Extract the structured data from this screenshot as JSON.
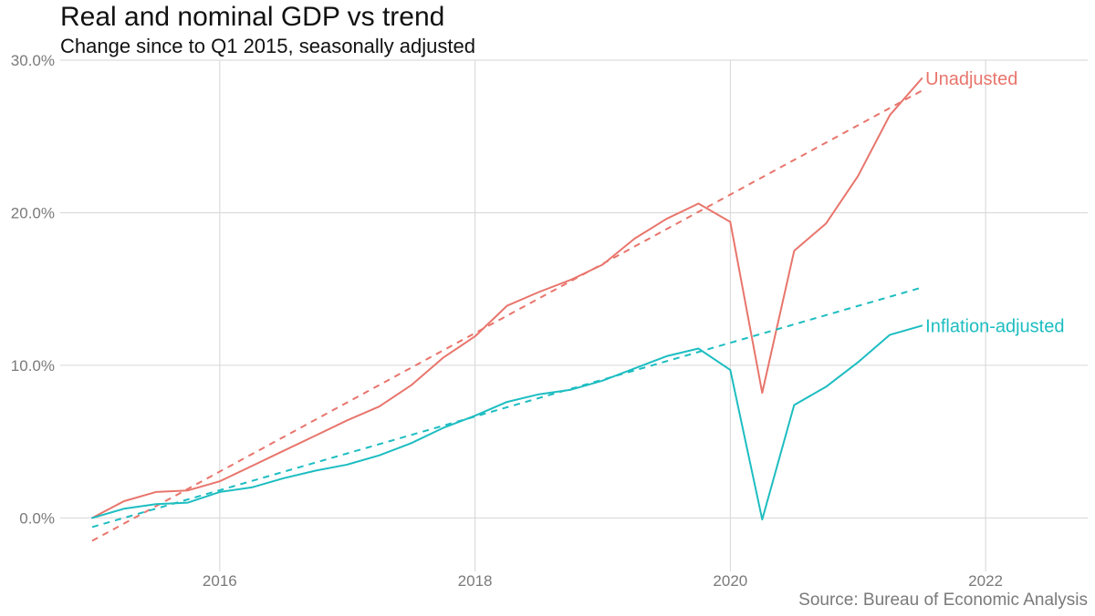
{
  "chart_data": {
    "type": "line",
    "title": "Real and nominal GDP vs trend",
    "subtitle": "Change since to Q1 2015, seasonally adjusted",
    "source": "Source: Bureau of Economic Analysis",
    "xlabel": "",
    "ylabel": "",
    "xlim": [
      2014.75,
      2022.8
    ],
    "ylim": [
      -0.035,
      0.3
    ],
    "x_ticks": [
      2016,
      2018,
      2020,
      2022
    ],
    "x_tick_labels": [
      "2016",
      "2018",
      "2020",
      "2022"
    ],
    "y_ticks": [
      0,
      0.1,
      0.2,
      0.3
    ],
    "y_tick_labels": [
      "0.0%",
      "10.0%",
      "20.0%",
      "30.0%"
    ],
    "grid": true,
    "legend": "direct labels at line ends",
    "series": [
      {
        "name": "Unadjusted",
        "color": "#E8756C",
        "style": "solid",
        "x": [
          2015.0,
          2015.25,
          2015.5,
          2015.75,
          2016.0,
          2016.25,
          2016.5,
          2016.75,
          2017.0,
          2017.25,
          2017.5,
          2017.75,
          2018.0,
          2018.25,
          2018.5,
          2018.75,
          2019.0,
          2019.25,
          2019.5,
          2019.75,
          2020.0,
          2020.25,
          2020.5,
          2020.75,
          2021.0,
          2021.25,
          2021.5
        ],
        "y": [
          0.0,
          0.011,
          0.017,
          0.018,
          0.024,
          0.034,
          0.044,
          0.054,
          0.064,
          0.073,
          0.087,
          0.105,
          0.119,
          0.139,
          0.148,
          0.156,
          0.166,
          0.183,
          0.196,
          0.206,
          0.194,
          0.082,
          0.175,
          0.193,
          0.224,
          0.264,
          0.288
        ]
      },
      {
        "name": "Unadjusted trend",
        "color": "#E8756C",
        "style": "dashed",
        "x": [
          2015.0,
          2021.5
        ],
        "y": [
          -0.015,
          0.28
        ]
      },
      {
        "name": "Inflation-adjusted",
        "color": "#1DBDC1",
        "style": "solid",
        "x": [
          2015.0,
          2015.25,
          2015.5,
          2015.75,
          2016.0,
          2016.25,
          2016.5,
          2016.75,
          2017.0,
          2017.25,
          2017.5,
          2017.75,
          2018.0,
          2018.25,
          2018.5,
          2018.75,
          2019.0,
          2019.25,
          2019.5,
          2019.75,
          2020.0,
          2020.25,
          2020.5,
          2020.75,
          2021.0,
          2021.25,
          2021.5
        ],
        "y": [
          0.0,
          0.006,
          0.009,
          0.01,
          0.017,
          0.02,
          0.026,
          0.031,
          0.035,
          0.041,
          0.049,
          0.059,
          0.067,
          0.076,
          0.081,
          0.084,
          0.09,
          0.098,
          0.106,
          0.111,
          0.097,
          -0.001,
          0.074,
          0.086,
          0.102,
          0.12,
          0.126
        ]
      },
      {
        "name": "Inflation-adjusted trend",
        "color": "#1DBDC1",
        "style": "dashed",
        "x": [
          2015.0,
          2021.5
        ],
        "y": [
          -0.006,
          0.151
        ]
      }
    ],
    "end_labels": [
      {
        "text": "Unadjusted",
        "series": "Unadjusted",
        "color": "#E8756C"
      },
      {
        "text": "Inflation-adjusted",
        "series": "Inflation-adjusted",
        "color": "#1DBDC1"
      }
    ]
  }
}
